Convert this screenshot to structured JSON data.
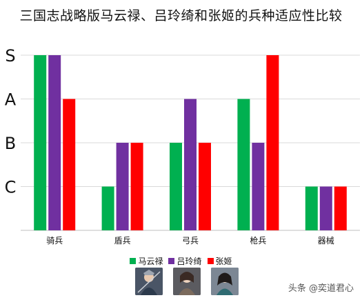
{
  "chart_data": {
    "type": "bar",
    "title": "三国志战略版马云禄、吕玲绮和张姬的兵种适应性比较",
    "categories": [
      "骑兵",
      "盾兵",
      "弓兵",
      "枪兵",
      "器械"
    ],
    "y_levels": [
      "C",
      "B",
      "A",
      "S"
    ],
    "level_scale": {
      "C": 1,
      "B": 2,
      "A": 3,
      "S": 4
    },
    "y_tick_labels": [
      "C",
      "B",
      "A",
      "S"
    ],
    "ylim": [
      0,
      4
    ],
    "grid": true,
    "legend": "bottom-center",
    "series": [
      {
        "name": "马云禄",
        "color": "#00b050",
        "levels": [
          "S",
          "C",
          "B",
          "A",
          "C"
        ],
        "values": [
          4,
          1,
          2,
          3,
          1
        ]
      },
      {
        "name": "吕玲绮",
        "color": "#7030a0",
        "levels": [
          "S",
          "B",
          "A",
          "B",
          "C"
        ],
        "values": [
          4,
          2,
          3,
          2,
          1
        ]
      },
      {
        "name": "张姬",
        "color": "#ff0000",
        "levels": [
          "A",
          "B",
          "B",
          "S",
          "C"
        ],
        "values": [
          3,
          2,
          2,
          4,
          1
        ]
      }
    ]
  },
  "watermark": "头条 @奕道君心",
  "portraits": [
    "portrait-ma-yunlu",
    "portrait-lv-lingqi",
    "portrait-zhang-ji"
  ]
}
